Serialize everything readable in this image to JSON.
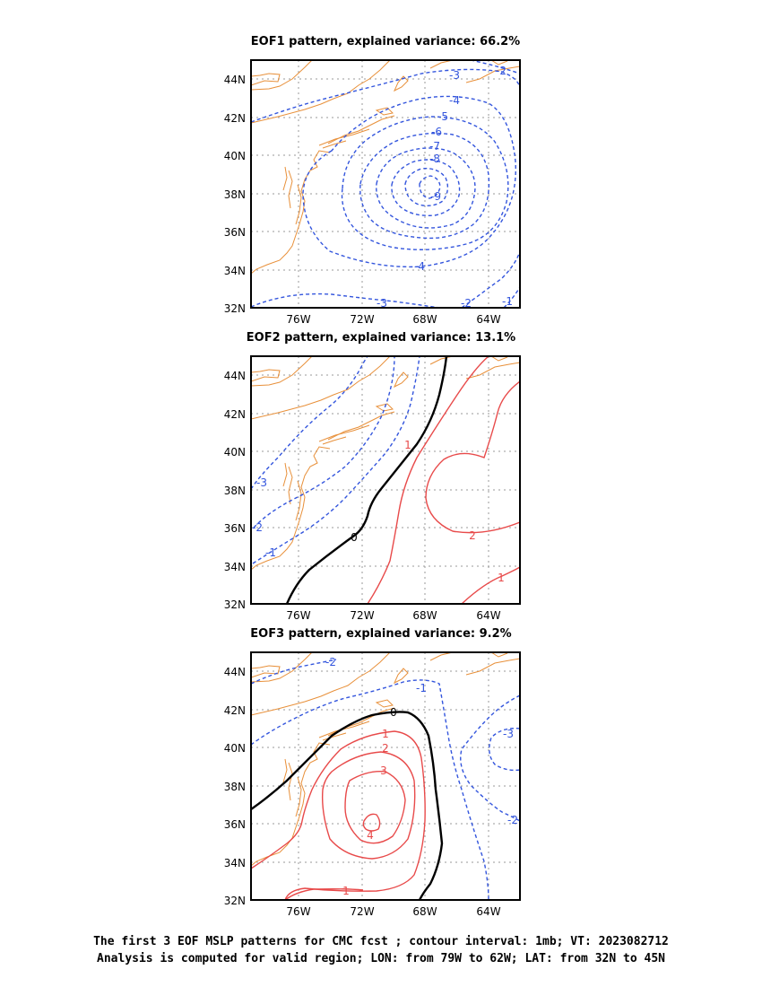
{
  "colors": {
    "negative": "#3355dd",
    "positive": "#e84a4a",
    "zero": "#000000",
    "coast": "#e8903a",
    "grid": "#999999"
  },
  "lon_ticks": [
    "76W",
    "72W",
    "68W",
    "64W"
  ],
  "lat_ticks": [
    "44N",
    "42N",
    "40N",
    "38N",
    "36N",
    "34N",
    "32N"
  ],
  "panels": [
    {
      "title": "EOF1 pattern, explained variance: 66.2%",
      "contour_labels": [
        "-2",
        "-3",
        "-4",
        "-5",
        "-6",
        "-7",
        "-8",
        "-9",
        "-4",
        "-3",
        "-2",
        "-1"
      ]
    },
    {
      "title": "EOF2 pattern, explained variance: 13.1%",
      "contour_labels": [
        "-3",
        "-2",
        "-1",
        "0",
        "1",
        "2",
        "1"
      ]
    },
    {
      "title": "EOF3 pattern, explained variance: 9.2%",
      "contour_labels": [
        "-2",
        "-1",
        "0",
        "1",
        "2",
        "3",
        "4",
        "1",
        "-3",
        "-2"
      ]
    }
  ],
  "caption": {
    "line1": "The first 3 EOF MSLP patterns for CMC fcst ; contour interval: 1mb; VT: 2023082712",
    "line2": "Analysis is computed for valid region; LON: from 79W to 62W; LAT: from 32N to 45N"
  }
}
